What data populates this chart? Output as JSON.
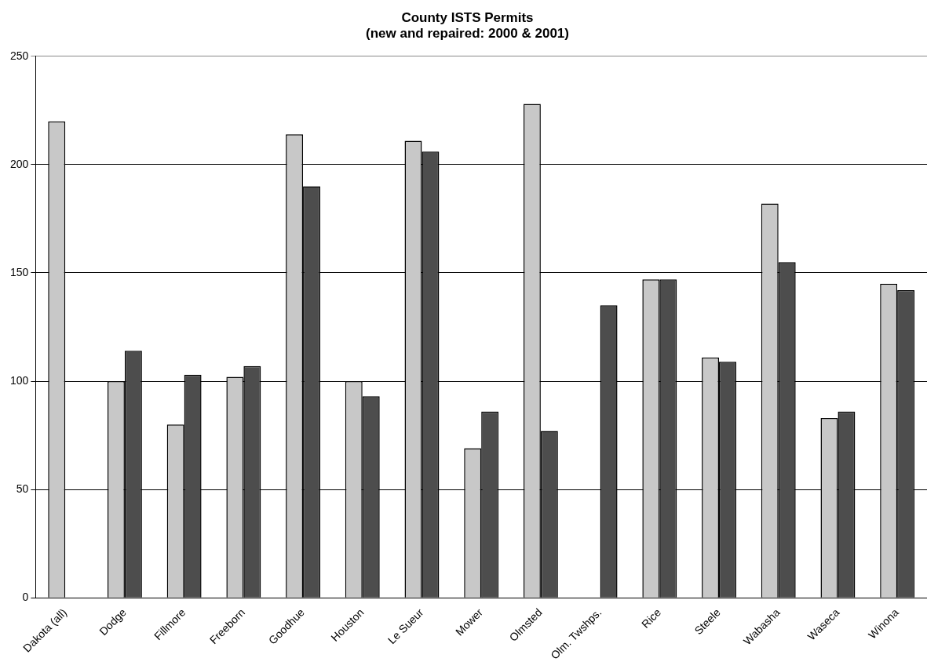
{
  "chart_data": {
    "type": "bar",
    "title": "County ISTS Permits",
    "subtitle": "(new and repaired: 2000 & 2001)",
    "categories": [
      "Dakota (all)",
      "Dodge",
      "Fillmore",
      "Freeborn",
      "Goodhue",
      "Houston",
      "Le Sueur",
      "Mower",
      "Olmsted",
      "Olm. Twshps.",
      "Rice",
      "Steele",
      "Wabasha",
      "Waseca",
      "Winona"
    ],
    "series": [
      {
        "color": "#c8c8c8",
        "values": [
          220,
          100,
          80,
          102,
          214,
          100,
          211,
          69,
          228,
          null,
          147,
          111,
          182,
          83,
          145
        ]
      },
      {
        "color": "#4d4d4d",
        "values": [
          null,
          114,
          103,
          107,
          190,
          93,
          206,
          86,
          77,
          135,
          147,
          109,
          155,
          86,
          142
        ]
      }
    ],
    "ylim": [
      0,
      250
    ],
    "yticks": [
      0,
      50,
      100,
      150,
      200,
      250
    ],
    "grid": "y",
    "legend": false
  }
}
